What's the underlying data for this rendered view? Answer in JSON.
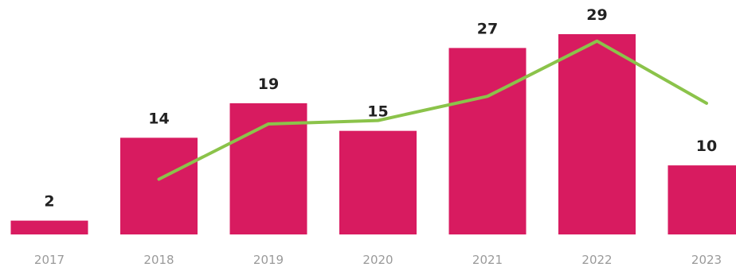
{
  "chart_data": {
    "type": "bar",
    "categories": [
      "2017",
      "2018",
      "2019",
      "2020",
      "2021",
      "2022",
      "2023"
    ],
    "series": [
      {
        "type": "bar",
        "values": [
          2,
          14,
          19,
          15,
          27,
          29,
          10
        ]
      },
      {
        "type": "line",
        "x": [
          "2018",
          "2019",
          "2020",
          "2021",
          "2022",
          "2023"
        ],
        "values": [
          8,
          16,
          16.5,
          20,
          28,
          19
        ]
      }
    ],
    "data_labels": [
      "2",
      "14",
      "19",
      "15",
      "27",
      "29",
      "10"
    ],
    "title": "",
    "xlabel": "",
    "ylabel": "",
    "ylim": [
      0,
      29
    ],
    "grid": false,
    "legend": "none",
    "colors": {
      "bar": "#d81b60",
      "line": "#8bc34a",
      "label": "#222222",
      "tick": "#9a9a9a"
    }
  }
}
